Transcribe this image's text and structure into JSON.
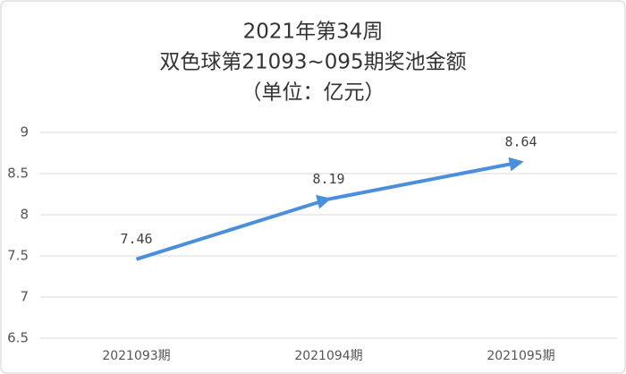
{
  "chart_data": {
    "type": "line",
    "title": [
      "2021年第34周",
      "双色球第21093~095期奖池金额",
      "（单位：亿元）"
    ],
    "categories": [
      "2021093期",
      "2021094期",
      "2021095期"
    ],
    "series": [
      {
        "name": "奖池金额",
        "color": "#4a8fdc",
        "values": [
          7.46,
          8.19,
          8.64
        ]
      }
    ],
    "ylim": [
      6.5,
      9
    ],
    "yticks": [
      6.5,
      7,
      7.5,
      8,
      8.5,
      9
    ],
    "grid": true
  }
}
